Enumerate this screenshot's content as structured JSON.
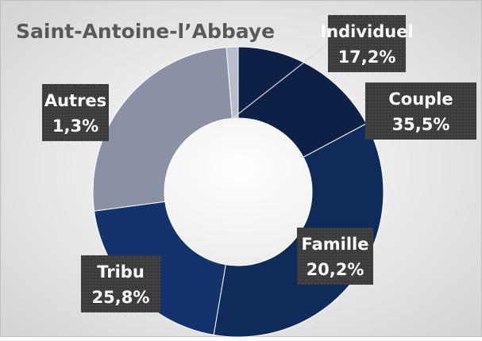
{
  "chart_data": {
    "type": "donut",
    "title": "Saint-Antoine-l’Abbaye",
    "categories": [
      "Individuel",
      "Couple",
      "Famille",
      "Tribu",
      "Autres"
    ],
    "values": [
      17.2,
      35.5,
      20.2,
      25.8,
      1.3
    ],
    "value_labels": [
      "17,2%",
      "35,5%",
      "20,2%",
      "25,8%",
      "1,3%"
    ],
    "colors": [
      "#0c2145",
      "#0f2b5a",
      "#12336b",
      "#8b91a5",
      "#b9bdc9"
    ]
  }
}
